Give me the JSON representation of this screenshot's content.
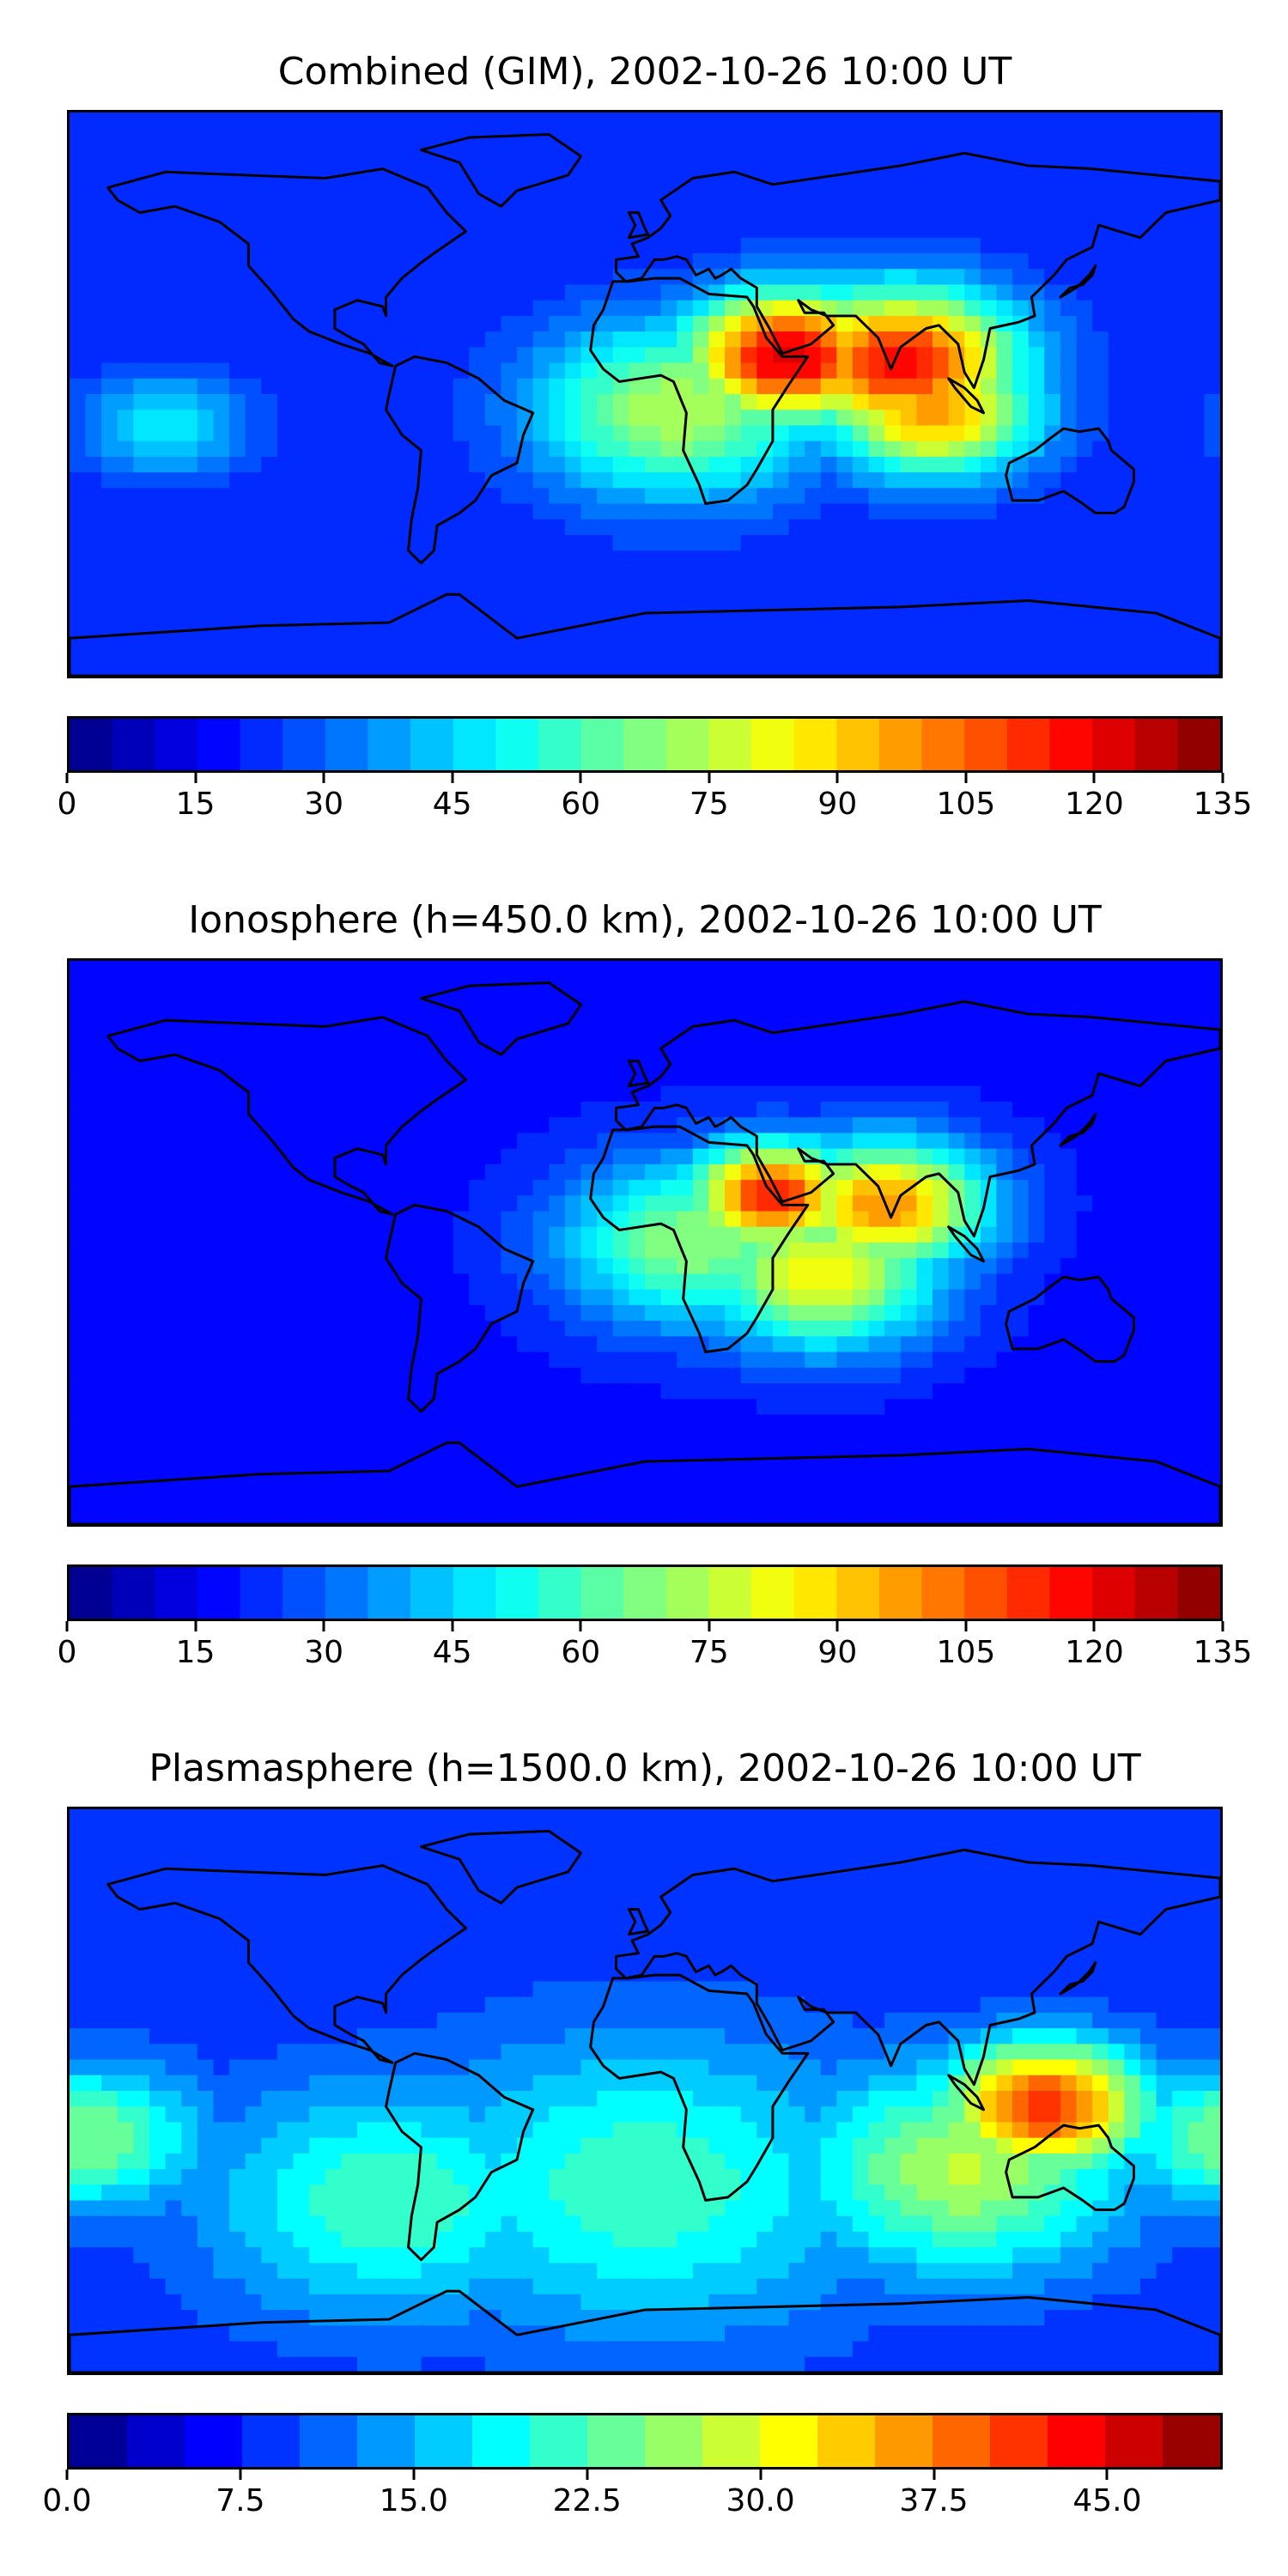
{
  "chart_data": [
    {
      "type": "heatmap",
      "title": "Combined (GIM), 2002-10-26 10:00 UT",
      "colormap": "jet",
      "colorbar": {
        "min": 0,
        "max": 135,
        "levels": 27,
        "ticks": [
          "0",
          "15",
          "30",
          "45",
          "60",
          "75",
          "90",
          "105",
          "120",
          "135"
        ]
      },
      "hotspots": [
        {
          "lon": 45,
          "lat": 12,
          "value": 125,
          "spread": 22
        },
        {
          "lon": 80,
          "lat": 10,
          "value": 118,
          "spread": 25
        },
        {
          "lon": 90,
          "lat": -5,
          "value": 100,
          "spread": 22
        },
        {
          "lon": 10,
          "lat": -5,
          "value": 75,
          "spread": 30
        },
        {
          "lon": -150,
          "lat": -10,
          "value": 48,
          "spread": 18
        }
      ],
      "background_value": 20
    },
    {
      "type": "heatmap",
      "title": "Ionosphere  (h=450.0 km), 2002-10-26 10:00 UT",
      "colormap": "jet",
      "colorbar": {
        "min": 0,
        "max": 135,
        "levels": 27,
        "ticks": [
          "0",
          "15",
          "30",
          "45",
          "60",
          "75",
          "90",
          "105",
          "120",
          "135"
        ]
      },
      "hotspots": [
        {
          "lon": 40,
          "lat": 15,
          "value": 115,
          "spread": 18
        },
        {
          "lon": 75,
          "lat": 12,
          "value": 100,
          "spread": 22
        },
        {
          "lon": 55,
          "lat": -10,
          "value": 85,
          "spread": 25
        },
        {
          "lon": 15,
          "lat": 0,
          "value": 70,
          "spread": 28
        }
      ],
      "background_value": 18
    },
    {
      "type": "heatmap",
      "title": "Plasmasphere (h=1500.0 km), 2002-10-26 10:00 UT",
      "colormap": "jet",
      "colorbar": {
        "min": 0,
        "max": 50,
        "levels": 20,
        "ticks": [
          "0.0",
          "7.5",
          "15.0",
          "22.5",
          "30.0",
          "37.5",
          "45.0"
        ]
      },
      "hotspots": [
        {
          "lon": 125,
          "lat": -5,
          "value": 42,
          "spread": 22
        },
        {
          "lon": 100,
          "lat": -25,
          "value": 28,
          "spread": 35
        },
        {
          "lon": -175,
          "lat": -15,
          "value": 25,
          "spread": 25
        },
        {
          "lon": 0,
          "lat": -30,
          "value": 22,
          "spread": 50
        },
        {
          "lon": -80,
          "lat": -35,
          "value": 22,
          "spread": 40
        }
      ],
      "background_value": 8
    }
  ]
}
